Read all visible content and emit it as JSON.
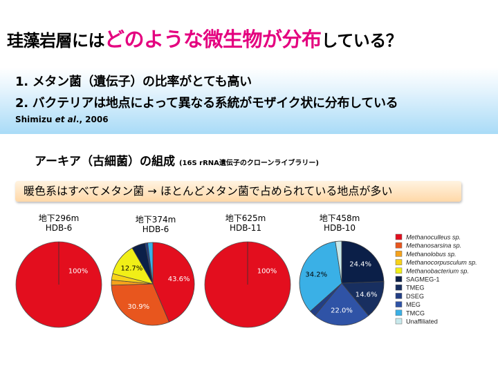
{
  "title": {
    "pre": "珪藻岩層には",
    "highlight": "どのような微生物が分布",
    "post": "している？"
  },
  "points": [
    "1. メタン菌（遺伝子）の比率がとても高い",
    "2. バクテリアは地点によって異なる系統がモザイク状に分布している"
  ],
  "citation": {
    "author": "Shimizu ",
    "etal": "et al",
    "year": "., 2006"
  },
  "section": {
    "title": "アーキア（古細菌）の組成",
    "subtitle": "(16S rRNA遺伝子のクローンライブラリー)"
  },
  "note": "暖色系はすべてメタン菌 → ほとんどメタン菌で占められている地点が多い",
  "colors": {
    "Methanoculleus sp.": "#e30e1e",
    "Methanosarsina sp.": "#e8561e",
    "Methanolobus sp.": "#f5a21c",
    "Methanocorpusculum sp.": "#f7d21a",
    "Methanobacterium sp.": "#f1ef17",
    "SAGMEG-1": "#0b1f48",
    "TMEG": "#182f60",
    "DSEG": "#223e84",
    "MEG": "#2f53a6",
    "TMCG": "#3ab0e6",
    "Unaffiliated": "#c8e9ec"
  },
  "chart_data": [
    {
      "type": "pie",
      "label": [
        "地下296m",
        "HDB-6"
      ],
      "slices": [
        {
          "name": "Methanoculleus sp.",
          "value": 100,
          "text": "100%"
        }
      ]
    },
    {
      "type": "pie",
      "label": [
        "地下374m",
        "HDB-6"
      ],
      "slices": [
        {
          "name": "Methanoculleus sp.",
          "value": 43.6,
          "text": "43.6%"
        },
        {
          "name": "Methanosarsina sp.",
          "value": 30.9,
          "text": "30.9%"
        },
        {
          "name": "Methanolobus sp.",
          "value": 2.0,
          "text": ""
        },
        {
          "name": "Methanocorpusculum sp.",
          "value": 2.5,
          "text": ""
        },
        {
          "name": "Methanobacterium sp.",
          "value": 12.7,
          "text": "12.7%"
        },
        {
          "name": "SAGMEG-1",
          "value": 5.3,
          "text": ""
        },
        {
          "name": "DSEG",
          "value": 1.0,
          "text": ""
        },
        {
          "name": "TMCG",
          "value": 2.0,
          "text": ""
        }
      ]
    },
    {
      "type": "pie",
      "label": [
        "地下625m",
        "HDB-11"
      ],
      "slices": [
        {
          "name": "Methanoculleus sp.",
          "value": 100,
          "text": "100%"
        }
      ]
    },
    {
      "type": "pie",
      "label": [
        "地下458m",
        "HDB-10"
      ],
      "slices": [
        {
          "name": "SAGMEG-1",
          "value": 24.4,
          "text": "24.4%"
        },
        {
          "name": "TMEG",
          "value": 14.6,
          "text": "14.6%"
        },
        {
          "name": "MEG",
          "value": 22.0,
          "text": "22.0%"
        },
        {
          "name": "DSEG",
          "value": 2.4,
          "text": ""
        },
        {
          "name": "TMCG",
          "value": 34.2,
          "text": "34.2%"
        },
        {
          "name": "Unaffiliated",
          "value": 2.4,
          "text": ""
        }
      ]
    }
  ],
  "legend": [
    {
      "name": "Methanoculleus sp.",
      "italic": true
    },
    {
      "name": "Methanosarsina sp.",
      "italic": true
    },
    {
      "name": "Methanolobus sp.",
      "italic": true
    },
    {
      "name": "Methanocorpusculum sp.",
      "italic": true
    },
    {
      "name": "Methanobacterium sp.",
      "italic": true
    },
    {
      "name": "SAGMEG-1",
      "italic": false
    },
    {
      "name": "TMEG",
      "italic": false
    },
    {
      "name": "DSEG",
      "italic": false
    },
    {
      "name": "MEG",
      "italic": false
    },
    {
      "name": "TMCG",
      "italic": false
    },
    {
      "name": "Unaffiliated",
      "italic": false
    }
  ]
}
